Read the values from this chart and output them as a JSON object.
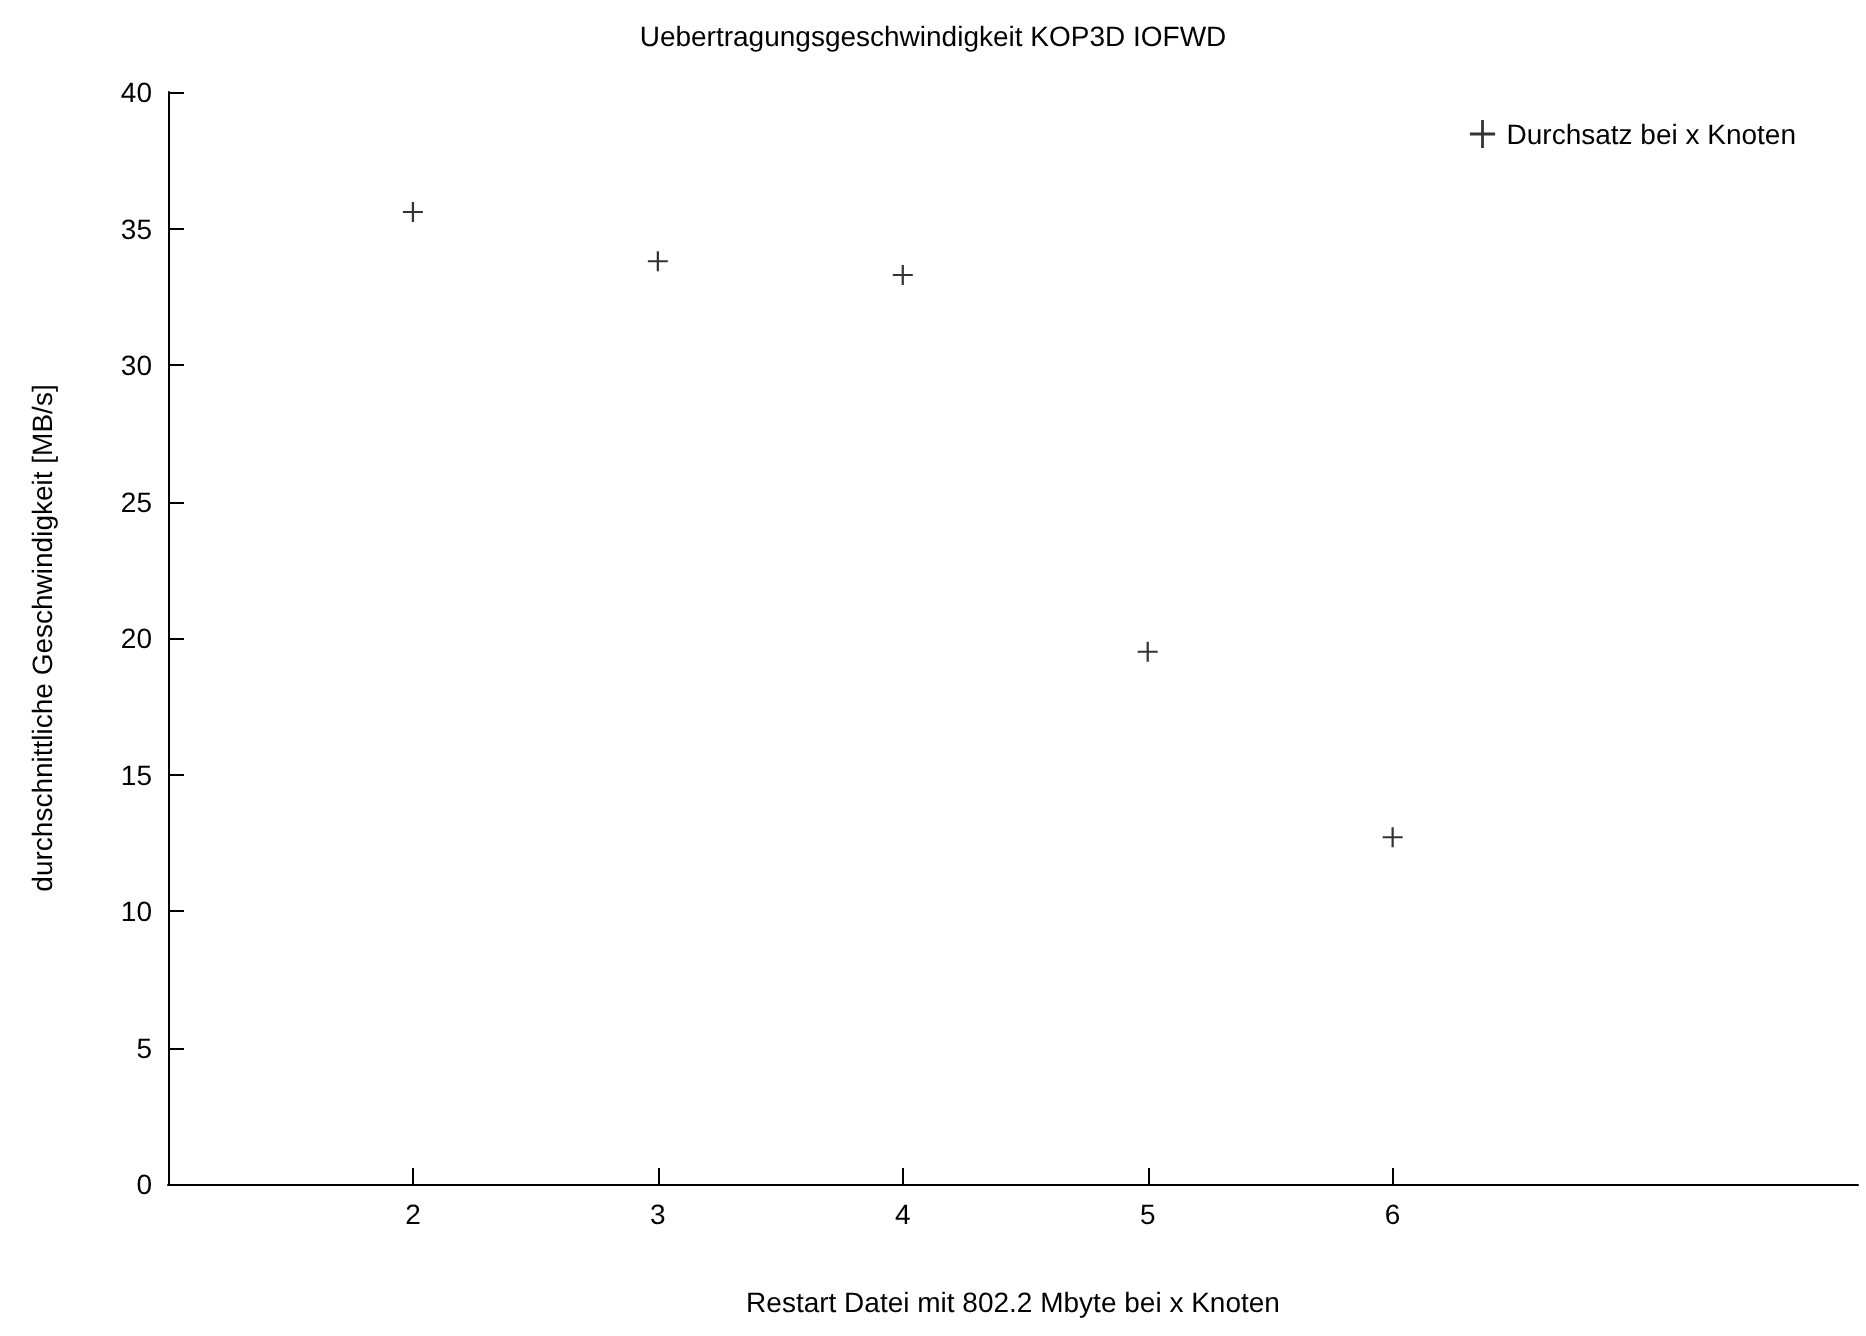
{
  "chart_data": {
    "type": "scatter",
    "title": "Uebertragungsgeschwindigkeit KOP3D IOFWD",
    "xlabel": "Restart Datei mit 802.2 Mbyte bei x Knoten",
    "ylabel": "durchschnittliche Geschwindigkeit [MB/s]",
    "x": [
      2,
      3,
      4,
      5,
      6
    ],
    "series": [
      {
        "name": "Durchsatz bei x Knoten",
        "color": "#000000",
        "values": [
          35.6,
          33.8,
          33.3,
          19.5,
          12.7
        ]
      }
    ],
    "xlim": [
      1,
      7.9
    ],
    "xticks": [
      2,
      3,
      4,
      5,
      6
    ],
    "ylim": [
      0,
      40
    ],
    "yticks": [
      0,
      5,
      10,
      15,
      20,
      25,
      30,
      35,
      40
    ],
    "marker": "cross",
    "grid": false,
    "legend": "top right"
  }
}
